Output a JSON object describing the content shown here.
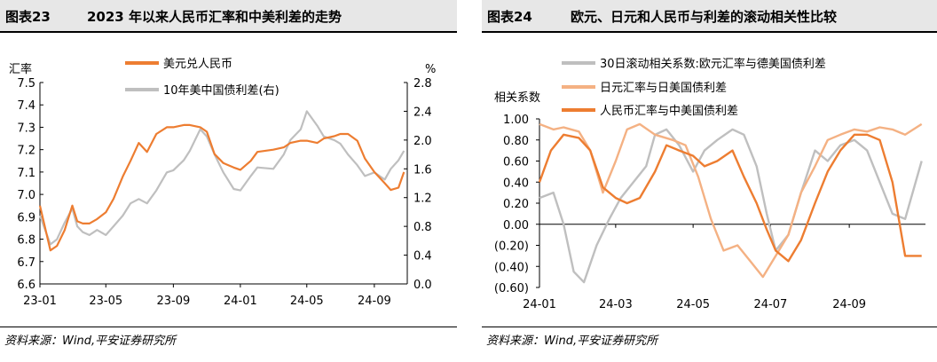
{
  "colors": {
    "orange": "#ed7d31",
    "grey": "#bfbfbf",
    "light_orange": "#f4b183",
    "neg": "#c00000"
  },
  "panels": [
    {
      "fig_num": "图表23",
      "title": "2023 年以来人民币汇率和中美利差的走势",
      "source": "资料来源：Wind,平安证券研究所"
    },
    {
      "fig_num": "图表24",
      "title": "欧元、日元和人民币与利差的滚动相关性比较",
      "source": "资料来源：Wind,平安证券研究所"
    }
  ],
  "chart_data": [
    {
      "type": "line",
      "ylabel_left": "汇率",
      "ylabel_right": "%",
      "ylim_left": [
        6.6,
        7.5
      ],
      "ylim_right": [
        0.0,
        2.8
      ],
      "yticks_left": [
        "6.6",
        "6.7",
        "6.8",
        "6.9",
        "7.0",
        "7.1",
        "7.2",
        "7.3",
        "7.4",
        "7.5"
      ],
      "yticks_right": [
        "0.0",
        "0.4",
        "0.8",
        "1.2",
        "1.6",
        "2.0",
        "2.4",
        "2.8"
      ],
      "x_range": [
        "2023-01-01",
        "2024-10-31"
      ],
      "xticks": [
        "23-01",
        "23-05",
        "23-09",
        "24-01",
        "24-05",
        "24-09"
      ],
      "legend_position": "top-left",
      "series": [
        {
          "name": "美元兑人民币",
          "axis": "left",
          "color": "#ed7d31",
          "x": [
            "2023-01-01",
            "2023-01-20",
            "2023-02-01",
            "2023-02-15",
            "2023-03-01",
            "2023-03-10",
            "2023-03-20",
            "2023-04-01",
            "2023-04-15",
            "2023-05-01",
            "2023-05-15",
            "2023-06-01",
            "2023-06-15",
            "2023-06-30",
            "2023-07-15",
            "2023-08-01",
            "2023-08-20",
            "2023-09-01",
            "2023-09-20",
            "2023-10-01",
            "2023-10-20",
            "2023-11-01",
            "2023-11-15",
            "2023-12-01",
            "2023-12-20",
            "2024-01-01",
            "2024-01-20",
            "2024-02-01",
            "2024-03-01",
            "2024-03-20",
            "2024-04-01",
            "2024-04-20",
            "2024-05-01",
            "2024-05-20",
            "2024-06-01",
            "2024-06-20",
            "2024-07-01",
            "2024-07-15",
            "2024-08-01",
            "2024-08-15",
            "2024-09-01",
            "2024-09-20",
            "2024-10-01",
            "2024-10-15",
            "2024-10-25"
          ],
          "y": [
            6.95,
            6.75,
            6.77,
            6.84,
            6.95,
            6.88,
            6.87,
            6.87,
            6.89,
            6.92,
            6.98,
            7.08,
            7.15,
            7.23,
            7.19,
            7.27,
            7.3,
            7.3,
            7.31,
            7.31,
            7.3,
            7.28,
            7.18,
            7.14,
            7.12,
            7.11,
            7.15,
            7.19,
            7.2,
            7.21,
            7.23,
            7.24,
            7.24,
            7.23,
            7.25,
            7.26,
            7.27,
            7.27,
            7.24,
            7.16,
            7.1,
            7.05,
            7.02,
            7.03,
            7.1
          ]
        },
        {
          "name": "10年美中国债利差(右)",
          "axis": "right",
          "color": "#bfbfbf",
          "x": [
            "2023-01-01",
            "2023-01-20",
            "2023-02-01",
            "2023-02-15",
            "2023-03-01",
            "2023-03-10",
            "2023-03-20",
            "2023-04-01",
            "2023-04-15",
            "2023-05-01",
            "2023-05-15",
            "2023-06-01",
            "2023-06-15",
            "2023-06-30",
            "2023-07-15",
            "2023-08-01",
            "2023-08-20",
            "2023-09-01",
            "2023-09-20",
            "2023-10-01",
            "2023-10-20",
            "2023-11-01",
            "2023-11-15",
            "2023-12-01",
            "2023-12-20",
            "2024-01-01",
            "2024-01-20",
            "2024-02-01",
            "2024-03-01",
            "2024-03-20",
            "2024-04-01",
            "2024-04-20",
            "2024-05-01",
            "2024-05-20",
            "2024-06-01",
            "2024-06-20",
            "2024-07-01",
            "2024-07-15",
            "2024-08-01",
            "2024-08-15",
            "2024-09-01",
            "2024-09-20",
            "2024-10-01",
            "2024-10-15",
            "2024-10-25"
          ],
          "y": [
            0.95,
            0.55,
            0.62,
            0.85,
            1.05,
            0.8,
            0.72,
            0.68,
            0.75,
            0.68,
            0.8,
            0.95,
            1.12,
            1.18,
            1.12,
            1.3,
            1.55,
            1.58,
            1.72,
            1.85,
            2.15,
            2.05,
            1.8,
            1.55,
            1.32,
            1.3,
            1.5,
            1.62,
            1.6,
            1.8,
            2.0,
            2.15,
            2.4,
            2.2,
            2.05,
            2.0,
            1.95,
            1.8,
            1.65,
            1.5,
            1.55,
            1.45,
            1.6,
            1.72,
            1.85
          ]
        }
      ]
    },
    {
      "type": "line",
      "ylabel": "相关系数",
      "ylim": [
        -0.6,
        1.0
      ],
      "yticks": [
        "(0.60)",
        "(0.40)",
        "(0.20)",
        "0.00",
        "0.20",
        "0.40",
        "0.60",
        "0.80",
        "1.00"
      ],
      "x_range": [
        "2024-01-01",
        "2024-10-31"
      ],
      "xticks": [
        "24-01",
        "24-03",
        "24-05",
        "24-07",
        "24-09"
      ],
      "legend_position": "top-left",
      "series": [
        {
          "name": "30日滚动相关系数:欧元汇率与德美国债利差",
          "color": "#bfbfbf",
          "x": [
            "2024-01-01",
            "2024-01-12",
            "2024-01-20",
            "2024-01-28",
            "2024-02-05",
            "2024-02-15",
            "2024-02-25",
            "2024-03-05",
            "2024-03-15",
            "2024-03-25",
            "2024-04-01",
            "2024-04-10",
            "2024-04-20",
            "2024-05-01",
            "2024-05-10",
            "2024-05-20",
            "2024-06-01",
            "2024-06-10",
            "2024-06-20",
            "2024-06-28",
            "2024-07-05",
            "2024-07-15",
            "2024-07-25",
            "2024-08-05",
            "2024-08-15",
            "2024-08-25",
            "2024-09-05",
            "2024-09-15",
            "2024-09-25",
            "2024-10-05",
            "2024-10-15",
            "2024-10-28"
          ],
          "y": [
            0.25,
            0.3,
            0.0,
            -0.45,
            -0.55,
            -0.2,
            0.05,
            0.25,
            0.4,
            0.55,
            0.85,
            0.9,
            0.75,
            0.5,
            0.7,
            0.8,
            0.9,
            0.85,
            0.55,
            0.1,
            -0.25,
            -0.1,
            0.3,
            0.7,
            0.6,
            0.75,
            0.8,
            0.7,
            0.4,
            0.1,
            0.05,
            0.6
          ]
        },
        {
          "name": "日元汇率与日美国债利差",
          "color": "#f4b183",
          "x": [
            "2024-01-01",
            "2024-01-12",
            "2024-01-20",
            "2024-02-01",
            "2024-02-10",
            "2024-02-20",
            "2024-03-01",
            "2024-03-10",
            "2024-03-20",
            "2024-04-01",
            "2024-04-15",
            "2024-04-25",
            "2024-05-05",
            "2024-05-15",
            "2024-05-25",
            "2024-06-05",
            "2024-06-15",
            "2024-06-25",
            "2024-07-05",
            "2024-07-15",
            "2024-07-25",
            "2024-08-05",
            "2024-08-15",
            "2024-08-25",
            "2024-09-05",
            "2024-09-15",
            "2024-09-25",
            "2024-10-05",
            "2024-10-15",
            "2024-10-28"
          ],
          "y": [
            0.95,
            0.9,
            0.92,
            0.88,
            0.7,
            0.3,
            0.6,
            0.9,
            0.95,
            0.85,
            0.8,
            0.75,
            0.45,
            0.05,
            -0.25,
            -0.2,
            -0.35,
            -0.5,
            -0.3,
            -0.1,
            0.3,
            0.55,
            0.8,
            0.85,
            0.9,
            0.88,
            0.92,
            0.9,
            0.85,
            0.95
          ]
        },
        {
          "name": "人民币汇率与中美国债利差",
          "color": "#ed7d31",
          "x": [
            "2024-01-01",
            "2024-01-10",
            "2024-01-20",
            "2024-02-01",
            "2024-02-10",
            "2024-02-20",
            "2024-03-01",
            "2024-03-10",
            "2024-03-20",
            "2024-04-01",
            "2024-04-10",
            "2024-04-20",
            "2024-05-01",
            "2024-05-10",
            "2024-05-20",
            "2024-06-01",
            "2024-06-10",
            "2024-06-20",
            "2024-06-28",
            "2024-07-05",
            "2024-07-15",
            "2024-07-25",
            "2024-08-05",
            "2024-08-15",
            "2024-08-25",
            "2024-09-05",
            "2024-09-15",
            "2024-09-25",
            "2024-10-05",
            "2024-10-15",
            "2024-10-28"
          ],
          "y": [
            0.4,
            0.7,
            0.85,
            0.82,
            0.7,
            0.35,
            0.25,
            0.2,
            0.25,
            0.5,
            0.75,
            0.7,
            0.65,
            0.55,
            0.6,
            0.7,
            0.45,
            0.2,
            -0.05,
            -0.25,
            -0.35,
            -0.15,
            0.2,
            0.5,
            0.7,
            0.85,
            0.85,
            0.8,
            0.4,
            -0.3,
            -0.3
          ]
        }
      ]
    }
  ]
}
